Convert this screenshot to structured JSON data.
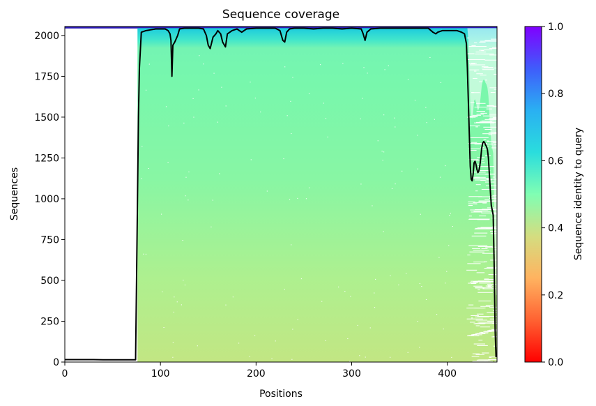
{
  "chart_data": {
    "type": "heatmap",
    "title": "Sequence coverage",
    "xlabel": "Positions",
    "ylabel": "Sequences",
    "xlim": [
      0,
      452
    ],
    "ylim": [
      0,
      2055
    ],
    "x_ticks": [
      0,
      100,
      200,
      300,
      400
    ],
    "y_ticks": [
      0,
      250,
      500,
      750,
      1000,
      1250,
      1500,
      1750,
      2000
    ],
    "colorbar": {
      "label": "Sequence identity to query",
      "range": [
        0.0,
        1.0
      ],
      "ticks": [
        "0.0",
        "0.2",
        "0.4",
        "0.6",
        "0.8",
        "1.0"
      ],
      "colormap": "rainbow_r"
    },
    "coverage_region": {
      "x_start": 76,
      "x_end": 452,
      "identity_bottom": 0.42,
      "identity_mid": 0.48,
      "identity_top": 0.62
    },
    "coverage_line": {
      "x": [
        0,
        10,
        20,
        30,
        40,
        50,
        60,
        70,
        74,
        75,
        76,
        77,
        78,
        80,
        85,
        90,
        95,
        100,
        105,
        108,
        110,
        111,
        112,
        113,
        115,
        118,
        120,
        125,
        130,
        140,
        145,
        148,
        150,
        152,
        155,
        158,
        160,
        163,
        165,
        168,
        170,
        175,
        180,
        185,
        190,
        200,
        210,
        220,
        225,
        228,
        230,
        232,
        235,
        240,
        250,
        260,
        270,
        280,
        290,
        300,
        310,
        312,
        314,
        316,
        320,
        330,
        340,
        350,
        360,
        370,
        380,
        385,
        388,
        390,
        395,
        400,
        405,
        410,
        415,
        418,
        420,
        421,
        422,
        423,
        424,
        425,
        426,
        427,
        428,
        429,
        430,
        431,
        432,
        433,
        434,
        435,
        436,
        437,
        438,
        439,
        440,
        441,
        442,
        443,
        444,
        445,
        446,
        447,
        448,
        449,
        450,
        451
      ],
      "y": [
        15,
        15,
        15,
        15,
        14,
        14,
        14,
        14,
        14,
        500,
        1000,
        1500,
        1800,
        2020,
        2030,
        2035,
        2040,
        2040,
        2040,
        2030,
        2010,
        1970,
        1750,
        1940,
        1960,
        2000,
        2040,
        2045,
        2045,
        2045,
        2040,
        2000,
        1940,
        1920,
        1990,
        2010,
        2030,
        2010,
        1960,
        1930,
        2010,
        2030,
        2040,
        2020,
        2040,
        2045,
        2045,
        2045,
        2030,
        1970,
        1960,
        2020,
        2040,
        2045,
        2045,
        2040,
        2045,
        2045,
        2040,
        2045,
        2040,
        2010,
        1970,
        2020,
        2040,
        2045,
        2045,
        2045,
        2045,
        2045,
        2045,
        2020,
        2010,
        2020,
        2030,
        2030,
        2030,
        2030,
        2020,
        2010,
        1950,
        1800,
        1600,
        1400,
        1200,
        1120,
        1110,
        1150,
        1220,
        1230,
        1210,
        1180,
        1160,
        1170,
        1200,
        1250,
        1310,
        1340,
        1350,
        1345,
        1330,
        1320,
        1300,
        1250,
        1150,
        1050,
        960,
        930,
        900,
        600,
        200,
        30
      ]
    }
  }
}
